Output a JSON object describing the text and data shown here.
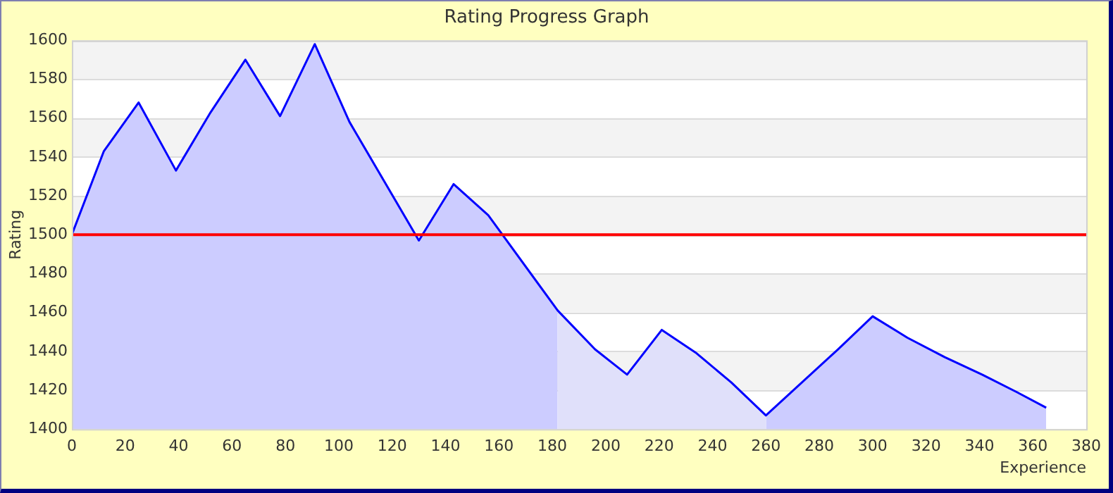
{
  "chart_data": {
    "type": "area",
    "title": "Rating Progress Graph",
    "xlabel": "Experience",
    "ylabel": "Rating",
    "series": [
      {
        "color": "#ccccff",
        "x": [
          0,
          12,
          25,
          39,
          52,
          65,
          78,
          91,
          104,
          130,
          143,
          156,
          182
        ],
        "values": [
          1500,
          1543,
          1568,
          1533,
          1563,
          1590,
          1561,
          1598,
          1558,
          1497,
          1526,
          1510,
          1461
        ]
      },
      {
        "color": "#e0e0fa",
        "x": [
          182,
          196,
          208,
          221,
          234,
          247,
          260
        ],
        "values": [
          1461,
          1441,
          1428,
          1451,
          1439,
          1424,
          1407
        ]
      },
      {
        "color": "#ccccff",
        "x": [
          260,
          287,
          300,
          313,
          327,
          341,
          354,
          365
        ],
        "values": [
          1407,
          1441,
          1458,
          1447,
          1437,
          1428,
          1419,
          1411
        ]
      },
      {
        "type": "line",
        "color": "#0000ff",
        "x": [
          0,
          12,
          25,
          39,
          52,
          65,
          78,
          91,
          104,
          130,
          143,
          156,
          182,
          196,
          208,
          221,
          234,
          247,
          260,
          287,
          300,
          313,
          327,
          341,
          354,
          365
        ],
        "values": [
          1500,
          1543,
          1568,
          1533,
          1563,
          1590,
          1561,
          1598,
          1558,
          1497,
          1526,
          1510,
          1461,
          1441,
          1428,
          1451,
          1439,
          1424,
          1407,
          1441,
          1458,
          1447,
          1437,
          1428,
          1419,
          1411
        ]
      }
    ],
    "xlim": [
      0,
      380
    ],
    "xticks": [
      0,
      20,
      40,
      60,
      80,
      100,
      120,
      140,
      160,
      180,
      200,
      220,
      240,
      260,
      280,
      300,
      320,
      340,
      360,
      380
    ],
    "ylim": [
      1400,
      1600
    ],
    "yticks": [
      1400,
      1420,
      1440,
      1460,
      1480,
      1500,
      1520,
      1540,
      1560,
      1580,
      1600
    ],
    "ref_lines": [
      {
        "axis": "y",
        "value": 1500,
        "color": "#ff0000"
      }
    ],
    "grid": "y",
    "legend": false,
    "marker": "none"
  }
}
